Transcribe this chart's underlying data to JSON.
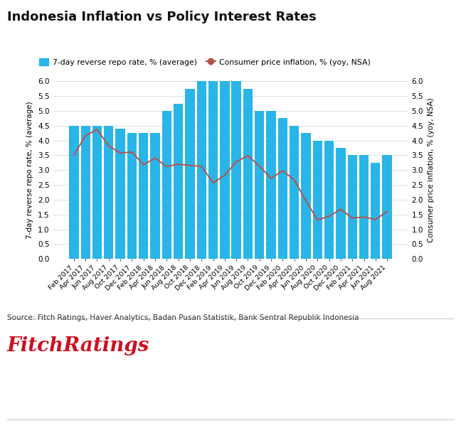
{
  "title": "Indonesia Inflation vs Policy Interest Rates",
  "x_labels": [
    "Feb 2017",
    "Apr 2017",
    "Jun 2017",
    "Aug 2017",
    "Oct 2017",
    "Dec 2017",
    "Feb 2018",
    "Apr 2018",
    "Jun 2018",
    "Aug 2018",
    "Oct 2018",
    "Dec 2018",
    "Feb 2019",
    "Apr 2019",
    "Jun 2019",
    "Aug 2019",
    "Oct 2019",
    "Dec 2019",
    "Feb 2020",
    "Apr 2020",
    "Jun 2020",
    "Aug 2020",
    "Oct 2020",
    "Dec 2020",
    "Feb 2021",
    "Apr 2021",
    "Jun 2021",
    "Aug 2021"
  ],
  "repo_rate": [
    4.5,
    4.5,
    4.5,
    4.5,
    4.4,
    4.25,
    4.25,
    4.25,
    5.0,
    5.25,
    5.75,
    6.0,
    6.0,
    6.0,
    6.0,
    5.75,
    5.0,
    5.0,
    4.75,
    4.5,
    4.25,
    4.0,
    4.0,
    3.75,
    3.5,
    3.5,
    3.25,
    3.5
  ],
  "inflation": [
    3.5,
    4.17,
    4.37,
    3.82,
    3.58,
    3.61,
    3.18,
    3.41,
    3.12,
    3.2,
    3.16,
    3.13,
    2.57,
    2.83,
    3.28,
    3.49,
    3.13,
    2.72,
    2.98,
    2.67,
    1.96,
    1.32,
    1.44,
    1.68,
    1.38,
    1.42,
    1.33,
    1.6
  ],
  "bar_color": "#29b5e8",
  "line_color": "#b5534a",
  "ylim_max": 6,
  "yticks": [
    0,
    0.5,
    1,
    1.5,
    2,
    2.5,
    3,
    3.5,
    4,
    4.5,
    5,
    5.5,
    6
  ],
  "ylabel_left": "7-day reverse repo rate, % (average)",
  "ylabel_right": "Consumer price inflation, % (yoy, NSA)",
  "legend_bar_label": "7-day reverse repo rate, % (average)",
  "legend_line_label": "Consumer price inflation, % (yoy, NSA)",
  "source_text": "Source: Fitch Ratings, Haver Analytics, Badan Pusan Statistik, Bank Sentral Republik Indonesia",
  "background_color": "#ffffff",
  "grid_color": "#e0e0e0"
}
